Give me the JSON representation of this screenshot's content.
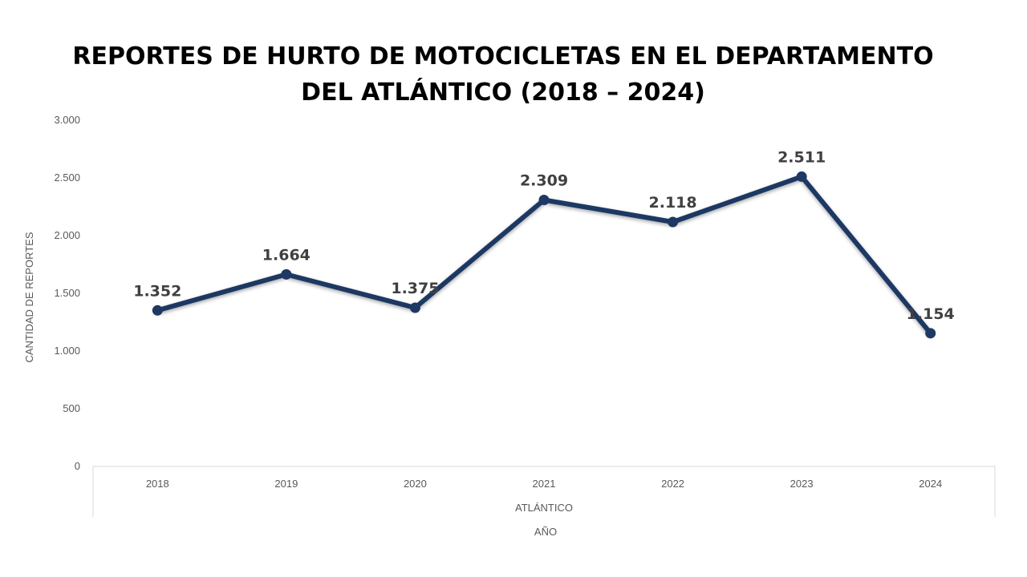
{
  "chart_data": {
    "type": "line",
    "title_lines": [
      "REPORTES DE HURTO DE MOTOCICLETAS EN EL DEPARTAMENTO",
      "DEL ATLÁNTICO (2018 – 2024)"
    ],
    "ylabel": "CANTIDAD DE REPORTES",
    "xlabel": "AÑO",
    "group_label": "ATLÁNTICO",
    "categories": [
      "2018",
      "2019",
      "2020",
      "2021",
      "2022",
      "2023",
      "2024"
    ],
    "series": [
      {
        "values": [
          1352,
          1664,
          1375,
          2309,
          2118,
          2511,
          1154
        ],
        "labels": [
          "1.352",
          "1.664",
          "1.375",
          "2.309",
          "2.118",
          "2.511",
          "1.154"
        ]
      }
    ],
    "y_ticks": [
      0,
      500,
      1000,
      1500,
      2000,
      2500,
      3000
    ],
    "y_tick_labels": [
      "0",
      "500",
      "1.000",
      "1.500",
      "2.000",
      "2.500",
      "3.000"
    ],
    "ylim": [
      0,
      3000
    ],
    "grid": false,
    "legend": "none",
    "line_color": "#1f3864"
  }
}
